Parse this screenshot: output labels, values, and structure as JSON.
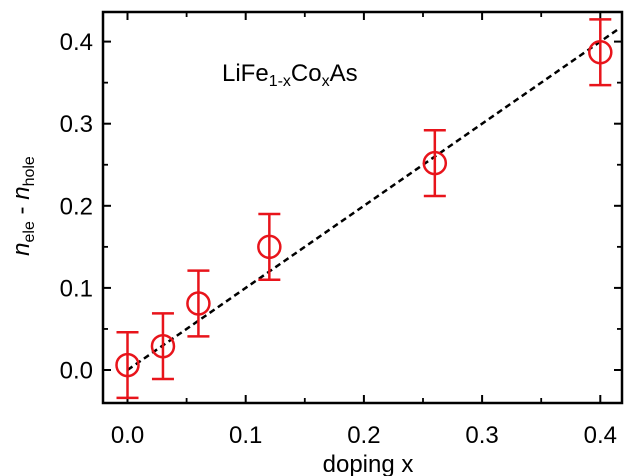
{
  "chart_data": {
    "type": "scatter",
    "xlabel": "doping x",
    "ylabel": {
      "parts": [
        {
          "text": "n",
          "style": "italic"
        },
        {
          "text": "ele",
          "style": "sub"
        },
        {
          "text": " - ",
          "style": "normal"
        },
        {
          "text": "n",
          "style": "italic"
        },
        {
          "text": "hole",
          "style": "sub"
        }
      ]
    },
    "annotation": {
      "parts": [
        {
          "text": "LiFe",
          "style": "normal"
        },
        {
          "text": "1-x",
          "style": "sub"
        },
        {
          "text": "Co",
          "style": "normal"
        },
        {
          "text": "x",
          "style": "sub"
        },
        {
          "text": "As",
          "style": "normal"
        }
      ]
    },
    "xlim": [
      -0.02,
      0.415
    ],
    "ylim": [
      -0.04,
      0.445
    ],
    "x_ticks": [
      0.0,
      0.1,
      0.2,
      0.3,
      0.4
    ],
    "x_tick_labels": [
      "0.0",
      "0.1",
      "0.2",
      "0.3",
      "0.4"
    ],
    "y_ticks": [
      0.0,
      0.1,
      0.2,
      0.3,
      0.4
    ],
    "y_tick_labels": [
      "0.0",
      "0.1",
      "0.2",
      "0.3",
      "0.4"
    ],
    "grid": false,
    "series": [
      {
        "marker": "open-circle",
        "color": "#e8141b",
        "points": [
          {
            "x": 0.0,
            "y": 0.006,
            "err": 0.04
          },
          {
            "x": 0.03,
            "y": 0.029,
            "err": 0.04
          },
          {
            "x": 0.06,
            "y": 0.081,
            "err": 0.04
          },
          {
            "x": 0.12,
            "y": 0.15,
            "err": 0.04
          },
          {
            "x": 0.26,
            "y": 0.252,
            "err": 0.04
          },
          {
            "x": 0.4,
            "y": 0.387,
            "err": 0.04
          }
        ]
      }
    ],
    "fit_line": {
      "style": "dashed",
      "color": "#000000",
      "x": [
        0.0,
        0.415
      ],
      "y": [
        0.0,
        0.415
      ]
    }
  }
}
